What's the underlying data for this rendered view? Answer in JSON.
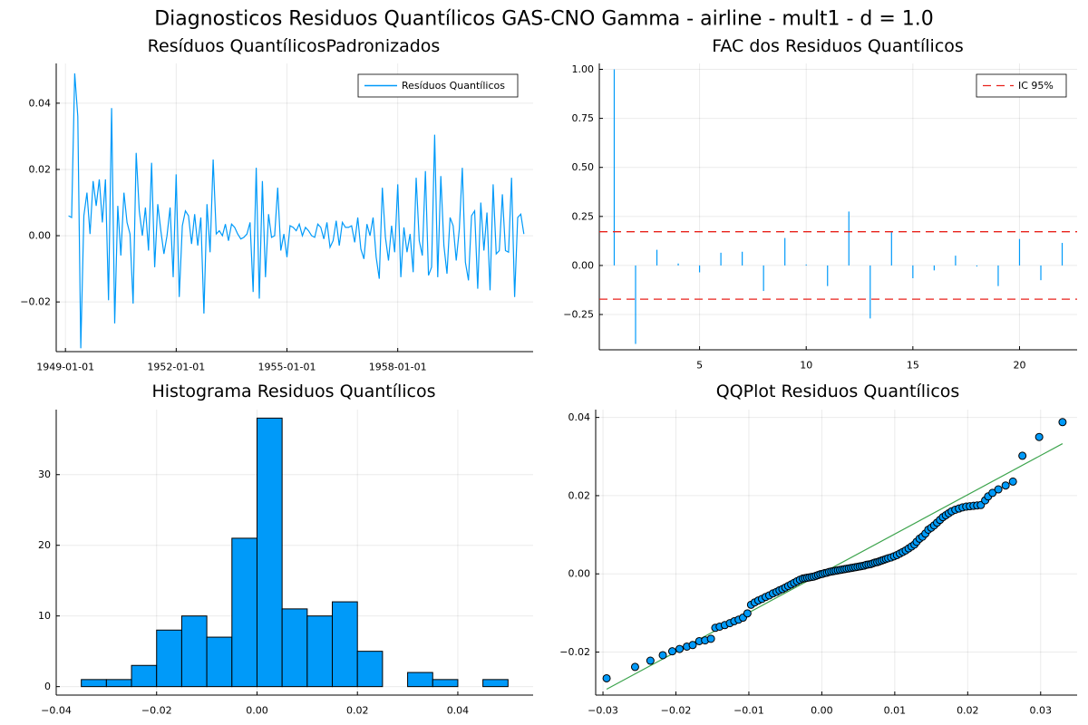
{
  "suptitle": "Diagnosticos Residuos  Quantílicos GAS-CNO Gamma - airline - mult1 - d = 1.0",
  "colors": {
    "series": "#009af9",
    "ic": "#e26f46",
    "qqline": "#3da44d",
    "ciRed": "#e8221b"
  },
  "chart_data": [
    {
      "type": "line",
      "title": "Resíduos  QuantílicosPadronizados",
      "xticklabels": [
        "1949-01-01",
        "1952-01-01",
        "1955-01-01",
        "1958-01-01"
      ],
      "xtick_index": [
        0,
        36,
        72,
        108
      ],
      "ylim": [
        -0.035,
        0.052
      ],
      "yticks": [
        -0.02,
        0.0,
        0.02,
        0.04
      ],
      "ytick_labels": [
        "−0.02",
        "0.00",
        "0.02",
        "0.04"
      ],
      "grid": true,
      "legend": "top-right",
      "series": [
        {
          "name": "Resíduos Quantílicos",
          "start": "1949-02-01",
          "frequency": "monthly",
          "values": [
            0.006,
            0.0055,
            0.049,
            0.036,
            -0.034,
            0.006,
            0.013,
            0.0005,
            0.0165,
            0.009,
            0.017,
            0.004,
            0.017,
            -0.0195,
            0.0385,
            -0.0265,
            0.009,
            -0.006,
            0.013,
            0.004,
            0.0005,
            -0.0205,
            0.025,
            0.0075,
            0.0,
            0.0085,
            -0.0045,
            0.022,
            -0.0095,
            0.0095,
            0.0015,
            -0.0055,
            0.0,
            0.0085,
            -0.0125,
            0.0185,
            -0.0185,
            0.003,
            0.0075,
            0.006,
            -0.0025,
            0.0065,
            -0.003,
            0.0055,
            -0.0235,
            0.0095,
            -0.005,
            0.023,
            0.0005,
            0.0015,
            0.0,
            0.0035,
            -0.0015,
            0.0035,
            0.0025,
            0.0005,
            -0.001,
            -0.0005,
            0.0005,
            0.004,
            -0.017,
            0.0205,
            -0.019,
            0.0165,
            -0.0125,
            0.0065,
            -0.0005,
            0.0,
            0.0145,
            -0.0045,
            0.0005,
            -0.0065,
            0.003,
            0.0025,
            0.0015,
            0.0035,
            0.0,
            0.0025,
            0.0015,
            0.0,
            -0.0005,
            0.0035,
            0.0025,
            -0.001,
            0.004,
            -0.0035,
            -0.0015,
            0.0045,
            -0.003,
            0.004,
            0.0025,
            0.0025,
            0.003,
            -0.002,
            0.0055,
            -0.004,
            -0.007,
            0.0035,
            0.0,
            0.0055,
            -0.0065,
            -0.013,
            0.0145,
            -0.0005,
            -0.0075,
            0.003,
            -0.005,
            0.0155,
            -0.0125,
            0.0025,
            -0.005,
            0.0005,
            -0.011,
            0.0175,
            -0.0015,
            -0.006,
            0.0195,
            -0.012,
            -0.0095,
            0.0305,
            -0.0125,
            0.018,
            -0.003,
            -0.0115,
            0.0055,
            0.003,
            -0.0075,
            0.002,
            0.0205,
            -0.008,
            -0.0135,
            0.006,
            0.0075,
            -0.016,
            0.01,
            -0.0045,
            0.007,
            -0.0165,
            0.0155,
            -0.0055,
            -0.0045,
            0.0125,
            -0.0045,
            -0.005,
            0.0175,
            -0.0185,
            0.0055,
            0.0065,
            0.0005
          ]
        }
      ]
    },
    {
      "type": "bar",
      "title": "FAC dos Residuos Quantílicos",
      "x": [
        1,
        2,
        3,
        4,
        5,
        6,
        7,
        8,
        9,
        10,
        11,
        12,
        13,
        14,
        15,
        16,
        17,
        18,
        19,
        20,
        21,
        22
      ],
      "values": [
        1.0,
        -0.4,
        0.08,
        0.01,
        -0.035,
        0.065,
        0.07,
        -0.13,
        0.14,
        0.005,
        -0.105,
        0.275,
        -0.27,
        0.175,
        -0.065,
        -0.025,
        0.05,
        -0.005,
        -0.105,
        0.135,
        -0.075,
        0.115
      ],
      "ci": 0.172,
      "ci_label": "IC 95%",
      "xlim": [
        0.3,
        22.7
      ],
      "xticks": [
        5,
        10,
        15,
        20
      ],
      "ylim": [
        -0.43,
        1.03
      ],
      "yticks": [
        -0.25,
        0.0,
        0.25,
        0.5,
        0.75,
        1.0
      ],
      "ytick_labels": [
        "−0.25",
        "0.00",
        "0.25",
        "0.50",
        "0.75",
        "1.00"
      ],
      "grid": true,
      "legend": "top-right"
    },
    {
      "type": "bar",
      "title": "Histograma Residuos Quantílicos",
      "bin_edges": [
        -0.035,
        -0.03,
        -0.025,
        -0.02,
        -0.015,
        -0.01,
        -0.005,
        0.0,
        0.005,
        0.01,
        0.015,
        0.02,
        0.025,
        0.03,
        0.035,
        0.04,
        0.045,
        0.05
      ],
      "counts": [
        1,
        1,
        3,
        8,
        10,
        7,
        21,
        38,
        11,
        10,
        12,
        5,
        0,
        2,
        1,
        0,
        1
      ],
      "xlim": [
        -0.04,
        0.055
      ],
      "xticks": [
        -0.04,
        -0.02,
        0.0,
        0.02,
        0.04
      ],
      "xtick_labels": [
        "−0.04",
        "−0.02",
        "0.00",
        "0.02",
        "0.04"
      ],
      "ylim": [
        -1.2,
        39.2
      ],
      "yticks": [
        0,
        10,
        20,
        30
      ],
      "grid": true
    },
    {
      "type": "scatter",
      "title": "QQPlot Residuos Quantílicos",
      "xlim": [
        -0.031,
        0.035
      ],
      "ylim": [
        -0.031,
        0.042
      ],
      "xticks": [
        -0.03,
        -0.02,
        -0.01,
        0.0,
        0.01,
        0.02,
        0.03
      ],
      "xtick_labels": [
        "−0.03",
        "−0.02",
        "−0.01",
        "0.00",
        "0.01",
        "0.02",
        "0.03"
      ],
      "yticks": [
        -0.02,
        0.0,
        0.02,
        0.04
      ],
      "ytick_labels": [
        "−0.02",
        "0.00",
        "0.02",
        "0.04"
      ],
      "reference_line": {
        "x": [
          -0.0295,
          0.033
        ],
        "y": [
          -0.0295,
          0.0333
        ]
      },
      "points": [
        [
          -0.0295,
          -0.0267
        ],
        [
          -0.0256,
          -0.0238
        ],
        [
          -0.0235,
          -0.0222
        ],
        [
          -0.0218,
          -0.0208
        ],
        [
          -0.0205,
          -0.0198
        ],
        [
          -0.0195,
          -0.0192
        ],
        [
          -0.0185,
          -0.0186
        ],
        [
          -0.0177,
          -0.0182
        ],
        [
          -0.0168,
          -0.0172
        ],
        [
          -0.016,
          -0.017
        ],
        [
          -0.0152,
          -0.0166
        ],
        [
          -0.0146,
          -0.0138
        ],
        [
          -0.014,
          -0.0135
        ],
        [
          -0.0133,
          -0.0131
        ],
        [
          -0.0126,
          -0.0126
        ],
        [
          -0.012,
          -0.0121
        ],
        [
          -0.0114,
          -0.0117
        ],
        [
          -0.0108,
          -0.0112
        ],
        [
          -0.0102,
          -0.0101
        ],
        [
          -0.0097,
          -0.0079
        ],
        [
          -0.0092,
          -0.0073
        ],
        [
          -0.0087,
          -0.0068
        ],
        [
          -0.0082,
          -0.0064
        ],
        [
          -0.0077,
          -0.0059
        ],
        [
          -0.0072,
          -0.0055
        ],
        [
          -0.0067,
          -0.005
        ],
        [
          -0.0062,
          -0.0046
        ],
        [
          -0.0058,
          -0.0042
        ],
        [
          -0.0054,
          -0.0039
        ],
        [
          -0.005,
          -0.0035
        ],
        [
          -0.0046,
          -0.0031
        ],
        [
          -0.0042,
          -0.0027
        ],
        [
          -0.0038,
          -0.0023
        ],
        [
          -0.0034,
          -0.0019
        ],
        [
          -0.003,
          -0.0015
        ],
        [
          -0.0026,
          -0.0012
        ],
        [
          -0.0023,
          -0.0011
        ],
        [
          -0.002,
          -0.001
        ],
        [
          -0.0017,
          -0.0009
        ],
        [
          -0.0014,
          -0.0008
        ],
        [
          -0.0011,
          -0.0007
        ],
        [
          -0.0008,
          -0.0005
        ],
        [
          -0.0005,
          -0.0003
        ],
        [
          -0.0002,
          -0.0001
        ],
        [
          0.0001,
          0.0
        ],
        [
          0.0004,
          0.0002
        ],
        [
          0.0007,
          0.0003
        ],
        [
          0.001,
          0.0005
        ],
        [
          0.0013,
          0.0006
        ],
        [
          0.0016,
          0.0007
        ],
        [
          0.0019,
          0.0008
        ],
        [
          0.0022,
          0.0009
        ],
        [
          0.0025,
          0.001
        ],
        [
          0.0028,
          0.0011
        ],
        [
          0.0031,
          0.0012
        ],
        [
          0.0034,
          0.0013
        ],
        [
          0.0037,
          0.0014
        ],
        [
          0.004,
          0.0015
        ],
        [
          0.0043,
          0.0016
        ],
        [
          0.0046,
          0.0017
        ],
        [
          0.0049,
          0.0018
        ],
        [
          0.0052,
          0.0019
        ],
        [
          0.0055,
          0.002
        ],
        [
          0.0058,
          0.0021
        ],
        [
          0.0061,
          0.0023
        ],
        [
          0.0064,
          0.0024
        ],
        [
          0.0067,
          0.0025
        ],
        [
          0.007,
          0.0027
        ],
        [
          0.0073,
          0.0029
        ],
        [
          0.0076,
          0.003
        ],
        [
          0.0079,
          0.0032
        ],
        [
          0.0082,
          0.0034
        ],
        [
          0.0085,
          0.0036
        ],
        [
          0.0088,
          0.0038
        ],
        [
          0.0091,
          0.004
        ],
        [
          0.0095,
          0.0042
        ],
        [
          0.0099,
          0.0045
        ],
        [
          0.0103,
          0.0048
        ],
        [
          0.0107,
          0.0052
        ],
        [
          0.0111,
          0.0056
        ],
        [
          0.0115,
          0.006
        ],
        [
          0.0119,
          0.0065
        ],
        [
          0.0123,
          0.007
        ],
        [
          0.0127,
          0.0075
        ],
        [
          0.013,
          0.0082
        ],
        [
          0.0134,
          0.009
        ],
        [
          0.0138,
          0.0095
        ],
        [
          0.0142,
          0.0103
        ],
        [
          0.0146,
          0.0113
        ],
        [
          0.015,
          0.0118
        ],
        [
          0.0154,
          0.0124
        ],
        [
          0.0158,
          0.0131
        ],
        [
          0.0162,
          0.0138
        ],
        [
          0.0166,
          0.0145
        ],
        [
          0.017,
          0.015
        ],
        [
          0.0174,
          0.0155
        ],
        [
          0.0178,
          0.016
        ],
        [
          0.0183,
          0.0164
        ],
        [
          0.0188,
          0.0167
        ],
        [
          0.0193,
          0.017
        ],
        [
          0.0198,
          0.0172
        ],
        [
          0.0203,
          0.0173
        ],
        [
          0.0208,
          0.0174
        ],
        [
          0.0213,
          0.0175
        ],
        [
          0.0218,
          0.0176
        ],
        [
          0.0224,
          0.0188
        ],
        [
          0.0228,
          0.0198
        ],
        [
          0.0234,
          0.0207
        ],
        [
          0.0242,
          0.0216
        ],
        [
          0.0252,
          0.0226
        ],
        [
          0.0262,
          0.0236
        ],
        [
          0.0275,
          0.0302
        ],
        [
          0.0298,
          0.035
        ],
        [
          0.033,
          0.0388
        ]
      ]
    }
  ]
}
